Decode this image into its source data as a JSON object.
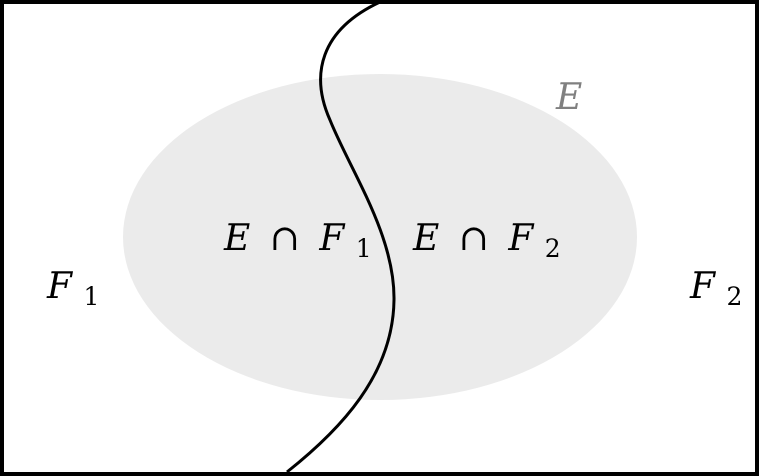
{
  "colors": {
    "background": "#ffffff",
    "border": "#000000",
    "event_fill": "#ebebeb",
    "event_label": "#808080",
    "text": "#000000",
    "divider": "#000000"
  },
  "labels": {
    "event": "E",
    "f1": {
      "base": "F",
      "sub": "1"
    },
    "f2": {
      "base": "F",
      "sub": "2"
    },
    "intersect_1": {
      "left": "E",
      "op": "∩",
      "base": "F",
      "sub": "1"
    },
    "intersect_2": {
      "left": "E",
      "op": "∩",
      "base": "F",
      "sub": "2"
    }
  }
}
